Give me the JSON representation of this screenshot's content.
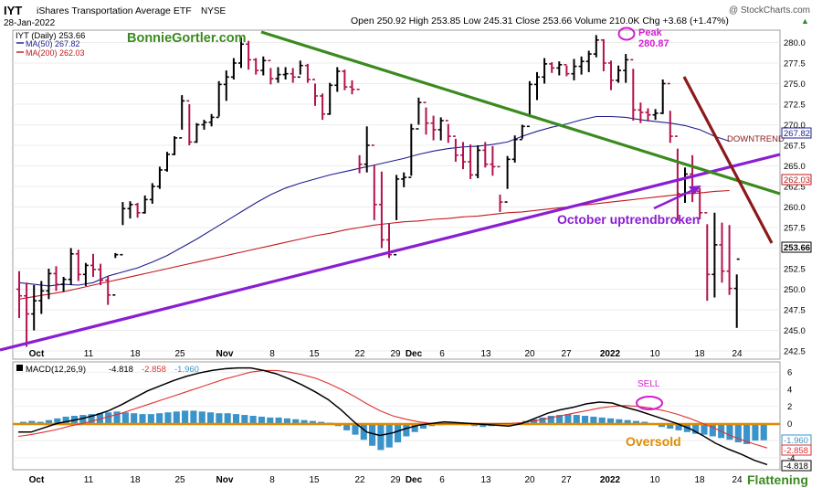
{
  "header": {
    "symbol": "IYT",
    "name": "iShares Transportation Average ETF",
    "exchange": "NYSE",
    "date": "28-Jan-2022",
    "watermark": "@ StockCharts.com",
    "ohlc": "Open 250.92  High 253.85  Low 245.31  Close 253.66  Volume 210.0K  Chg +3.68 (+1.47%)",
    "ohlc_arrow": "▲"
  },
  "price_legend": [
    {
      "label": "IYT (Daily) 253.66",
      "color": "#000000"
    },
    {
      "label": "MA(50) 267.82",
      "color": "#1f1f8f"
    },
    {
      "label": "MA(200) 262.03",
      "color": "#c2181f"
    }
  ],
  "macd_legend": {
    "prefix": "MACD(12,26,9)",
    "v1": "-4.818",
    "v2": "-2.858",
    "v3": "-1.960"
  },
  "annotations": {
    "site": "BonnieGortler.com",
    "peak": "Peak",
    "peak_value": "280.87",
    "downtrend": "DOWNTREND",
    "october": "October uptrendbroken",
    "sell": "SELL",
    "oversold": "Oversold",
    "flattening": "Flattening"
  },
  "colors": {
    "up": "#000000",
    "down": "#b2124e",
    "ma50": "#1f1f8f",
    "ma200": "#c2181f",
    "green": "#3a8a1e",
    "purple": "#8a1ed2",
    "maroon": "#8b1a1a",
    "orange": "#e08a00",
    "hist": "#3a94c9",
    "signal": "#e03030"
  },
  "tags": {
    "price": "253.66",
    "ma50": "267.82",
    "ma200": "262.03",
    "hist": "-1.960",
    "signal": "-2.858",
    "macd": "-4.818"
  },
  "x_labels": [
    "Oct",
    "11",
    "18",
    "25",
    "Nov",
    "8",
    "15",
    "22",
    "29",
    "Dec",
    "6",
    "13",
    "20",
    "27",
    "2022",
    "10",
    "18",
    "24"
  ],
  "chart_data": {
    "type": "ohlc",
    "title": "IYT iShares Transportation Average ETF",
    "y_ticks": [
      242.5,
      245.0,
      247.5,
      250.0,
      252.5,
      255.0,
      257.5,
      260.0,
      262.5,
      265.0,
      267.5,
      270.0,
      272.5,
      275.0,
      277.5,
      280.0
    ],
    "ylim": [
      241.5,
      281.5
    ],
    "bars": [
      [
        250,
        252.2,
        246.5,
        249.2
      ],
      [
        249.2,
        250.8,
        243,
        247
      ],
      [
        247,
        250.5,
        245,
        248.6
      ],
      [
        248.6,
        251,
        247,
        249.8
      ],
      [
        249.8,
        252.5,
        248.8,
        251.9
      ],
      [
        251.9,
        252.8,
        249.8,
        250.6
      ],
      [
        250.6,
        251.5,
        249.7,
        251.2
      ],
      [
        251.2,
        255,
        250.5,
        254.3
      ],
      [
        254.3,
        254.8,
        251,
        251.8
      ],
      [
        251.8,
        253.2,
        250.4,
        252.9
      ],
      [
        252.9,
        254.3,
        251.5,
        252.4
      ],
      [
        252.4,
        253.1,
        250.5,
        251.1
      ],
      [
        251.1,
        251.6,
        248.1,
        249.3
      ],
      [
        249.3,
        254.4,
        253.8,
        254.2
      ],
      [
        254.2,
        260.6,
        257.8,
        259.8
      ],
      [
        259.8,
        260.7,
        258.6,
        260.3
      ],
      [
        260.3,
        260.5,
        258.7,
        259.3
      ],
      [
        259.3,
        261.4,
        259.2,
        260.9
      ],
      [
        260.9,
        262.9,
        260.4,
        262.5
      ],
      [
        262.5,
        264.9,
        262.2,
        264.5
      ],
      [
        264.5,
        266.7,
        264.3,
        266.4
      ],
      [
        266.4,
        268.6,
        266.3,
        268.4
      ],
      [
        268.4,
        273.6,
        269.4,
        272.9
      ],
      [
        272.9,
        272.5,
        267.5,
        267.9
      ],
      [
        267.9,
        270.2,
        267.8,
        270.0
      ],
      [
        270,
        270.6,
        269.4,
        270.3
      ],
      [
        270.3,
        271.3,
        269.8,
        270.9
      ],
      [
        270.9,
        275.3,
        271.0,
        274.9
      ],
      [
        274.9,
        276.6,
        272.9,
        275.8
      ],
      [
        275.8,
        278.1,
        275.5,
        277.5
      ],
      [
        277.5,
        280.6,
        276.9,
        279.8
      ],
      [
        279.8,
        280.2,
        276.7,
        277.9
      ],
      [
        277.9,
        278.1,
        276.1,
        276.6
      ],
      [
        276.6,
        278.3,
        276.0,
        277.8
      ],
      [
        277.8,
        276.9,
        274.9,
        275.6
      ],
      [
        275.6,
        277.0,
        275.1,
        276.1
      ],
      [
        276.1,
        277.0,
        275.5,
        276.2
      ],
      [
        276.2,
        276.9,
        275.1,
        275.8
      ],
      [
        275.8,
        277.8,
        276.1,
        277.2
      ],
      [
        277.2,
        277.4,
        275.1,
        275.5
      ],
      [
        275.5,
        275.0,
        272.3,
        273.5
      ],
      [
        273.5,
        273.8,
        270.6,
        271.3
      ],
      [
        271.3,
        275.1,
        271.2,
        274.8
      ],
      [
        274.8,
        277.0,
        274.0,
        276.5
      ],
      [
        276.5,
        276.7,
        274.2,
        274.6
      ],
      [
        274.6,
        275.4,
        273.7,
        274.3
      ],
      [
        274.3,
        266.3,
        264.1,
        265.2
      ],
      [
        265.2,
        269.8,
        264.2,
        267.5
      ],
      [
        267.5,
        265.1,
        258.4,
        260.3
      ],
      [
        260.3,
        264.3,
        255.0,
        256.0
      ],
      [
        256.0,
        258.0,
        253.8,
        254.2
      ],
      [
        254.2,
        263.9,
        258.4,
        263.4
      ],
      [
        263.4,
        264.2,
        262.4,
        263.6
      ],
      [
        263.6,
        270.1,
        263.8,
        269.5
      ],
      [
        269.5,
        273.3,
        270.0,
        272.7
      ],
      [
        272.7,
        272.1,
        268.8,
        270.2
      ],
      [
        270.2,
        271.1,
        268.1,
        269.4
      ],
      [
        269.4,
        270.9,
        268.1,
        270.5
      ],
      [
        270.5,
        270.1,
        267.8,
        268.6
      ],
      [
        268.6,
        268.3,
        265.5,
        266.3
      ],
      [
        266.3,
        267.9,
        264.6,
        265.5
      ],
      [
        265.5,
        267.6,
        263.4,
        263.9
      ],
      [
        263.9,
        267.5,
        263.5,
        266.9
      ],
      [
        266.9,
        267.9,
        264.8,
        265.2
      ],
      [
        265.2,
        267.4,
        263.8,
        264.9
      ],
      [
        264.9,
        261.5,
        259.4,
        260.6
      ],
      [
        260.6,
        266.2,
        262.2,
        265.8
      ],
      [
        265.8,
        268.7,
        265.4,
        268.2
      ],
      [
        268.2,
        270.0,
        268.3,
        269.8
      ],
      [
        269.8,
        275.3,
        271.2,
        274.9
      ],
      [
        274.9,
        276.4,
        273.0,
        275.8
      ],
      [
        275.8,
        278.1,
        275.0,
        277.4
      ],
      [
        277.4,
        277.6,
        276.3,
        276.9
      ],
      [
        276.9,
        277.7,
        276.0,
        277.3
      ],
      [
        277.3,
        277.2,
        275.9,
        276.2
      ],
      [
        276.2,
        278.0,
        275.4,
        277.1
      ],
      [
        277.1,
        278.3,
        276.1,
        277.7
      ],
      [
        277.7,
        279.0,
        276.4,
        278.6
      ],
      [
        278.6,
        280.9,
        278.2,
        280.3
      ],
      [
        280.3,
        280.4,
        276.5,
        277.5
      ],
      [
        277.5,
        277.8,
        274.2,
        275.4
      ],
      [
        275.4,
        277.2,
        275.1,
        276.6
      ],
      [
        276.6,
        278.6,
        275.1,
        277.9
      ],
      [
        277.9,
        276.8,
        270.5,
        271.8
      ],
      [
        271.8,
        272.7,
        270.2,
        271.5
      ],
      [
        271.5,
        272.0,
        270.4,
        271.2
      ],
      [
        271.2,
        271.9,
        270.6,
        271.4
      ],
      [
        271.4,
        275.5,
        271.3,
        275.0
      ],
      [
        275.0,
        271.7,
        267.8,
        268.6
      ],
      [
        268.6,
        267.1,
        258.3,
        261.6
      ],
      [
        261.6,
        264.8,
        260.5,
        264.0
      ],
      [
        264.0,
        266.3,
        260.6,
        261.9
      ],
      [
        261.9,
        262.3,
        258.5,
        259.3
      ],
      [
        259.3,
        257.9,
        248.6,
        251.8
      ],
      [
        251.8,
        259.3,
        249.0,
        255.4
      ],
      [
        255.4,
        258.1,
        250.8,
        252.2
      ],
      [
        252.2,
        257.8,
        249.3,
        250.1
      ],
      [
        250.1,
        251.8,
        245.3,
        253.66
      ]
    ],
    "ma50": [
      250.8,
      250.6,
      250.4,
      250.6,
      250.5,
      250.8,
      251.6,
      252.1,
      252.6,
      253.3,
      254.1,
      255.1,
      256.1,
      257.2,
      258.3,
      259.4,
      260.5,
      261.5,
      262.3,
      262.9,
      263.4,
      263.9,
      264.3,
      264.7,
      265.1,
      265.5,
      265.9,
      266.4,
      266.8,
      267.1,
      267.3,
      267.4,
      267.6,
      267.9,
      268.6,
      269.2,
      269.7,
      270.1,
      270.6,
      271.0,
      271.0,
      270.9,
      270.6,
      270.4,
      270.2,
      269.9,
      269.4,
      268.6,
      268.0
    ],
    "ma200": [
      248.8,
      249.1,
      249.4,
      249.7,
      250.1,
      250.5,
      250.9,
      251.3,
      251.7,
      252.1,
      252.5,
      252.9,
      253.3,
      253.7,
      254.1,
      254.5,
      254.9,
      255.3,
      255.7,
      256.1,
      256.5,
      256.8,
      257.2,
      257.5,
      257.8,
      258.0,
      258.2,
      258.3,
      258.5,
      258.6,
      258.8,
      258.9,
      259.1,
      259.3,
      259.4,
      259.6,
      259.8,
      260.0,
      260.2,
      260.4,
      260.6,
      260.8,
      261.0,
      261.2,
      261.4,
      261.6,
      261.7,
      261.9,
      262.0
    ],
    "macd": {
      "y_ticks": [
        -4,
        -2,
        0,
        2,
        4,
        6
      ],
      "ylim": [
        -5.4,
        7.2
      ],
      "macd": [
        -1.0,
        -1.0,
        -0.5,
        0.0,
        0.3,
        0.6,
        1.0,
        1.5,
        2.2,
        3.0,
        3.8,
        4.4,
        5.0,
        5.5,
        5.9,
        6.2,
        6.4,
        6.5,
        6.5,
        6.2,
        5.8,
        5.2,
        4.5,
        3.7,
        2.8,
        1.6,
        0.2,
        -1.0,
        -1.4,
        -1.1,
        -0.6,
        -0.2,
        0.0,
        0.2,
        0.1,
        0.0,
        -0.1,
        -0.2,
        -0.3,
        0.0,
        0.6,
        1.2,
        1.6,
        1.9,
        2.3,
        2.5,
        2.4,
        1.9,
        1.5,
        1.0,
        0.5,
        0.0,
        -0.6,
        -1.4,
        -2.3,
        -3.0,
        -3.6,
        -4.3,
        -4.8
      ],
      "signal": [
        -1.5,
        -1.3,
        -1.0,
        -0.7,
        -0.3,
        0.0,
        0.4,
        0.8,
        1.2,
        1.7,
        2.2,
        2.7,
        3.2,
        3.7,
        4.2,
        4.7,
        5.2,
        5.6,
        6.0,
        6.2,
        6.2,
        6.0,
        5.7,
        5.3,
        4.7,
        4.0,
        3.2,
        2.3,
        1.5,
        0.9,
        0.5,
        0.2,
        0.0,
        0.0,
        0.0,
        0.0,
        0.0,
        0.0,
        0.0,
        0.1,
        0.3,
        0.6,
        0.9,
        1.2,
        1.5,
        1.8,
        2.0,
        2.1,
        2.0,
        1.8,
        1.5,
        1.1,
        0.6,
        0.0,
        -0.6,
        -1.3,
        -1.9,
        -2.4,
        -2.86
      ],
      "hist": [
        0.2,
        0.3,
        0.2,
        0.4,
        0.6,
        0.8,
        0.9,
        1.0,
        1.1,
        1.2,
        1.3,
        1.4,
        1.3,
        1.2,
        1.1,
        1.1,
        1.2,
        1.3,
        1.4,
        1.5,
        1.5,
        1.4,
        1.3,
        1.2,
        1.2,
        1.1,
        1.0,
        0.9,
        0.8,
        0.7,
        0.7,
        0.6,
        0.5,
        0.4,
        0.3,
        0.2,
        0.1,
        -0.3,
        -0.8,
        -1.3,
        -1.9,
        -2.6,
        -3.1,
        -2.8,
        -2.2,
        -1.5,
        -1.0,
        -0.6,
        -0.3,
        -0.2,
        -0.1,
        -0.1,
        -0.2,
        -0.3,
        -0.4,
        -0.3,
        -0.2,
        0.0,
        0.1,
        0.3,
        0.5,
        0.7,
        0.9,
        1.0,
        1.1,
        1.0,
        0.9,
        0.8,
        0.7,
        0.6,
        0.5,
        0.4,
        0.3,
        0.2,
        -0.1,
        -0.4,
        -0.6,
        -0.8,
        -1.0,
        -1.2,
        -1.3,
        -1.5,
        -1.7,
        -1.9,
        -2.2,
        -2.4,
        -2.0,
        -1.96
      ]
    }
  }
}
